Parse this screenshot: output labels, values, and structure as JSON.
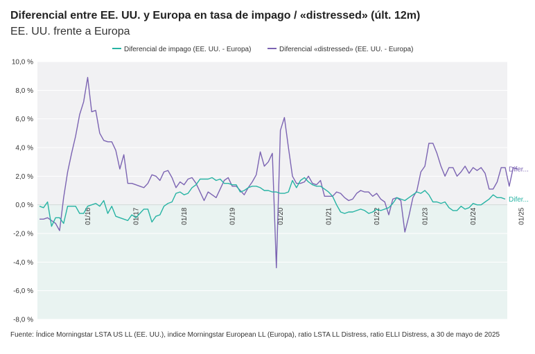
{
  "title": "Diferencial entre EE. UU. y Europa en tasa de impago / «distressed» (últ. 12m)",
  "subtitle": "EE. UU. frente a Europa",
  "source": "Fuente: Índice Morningstar LSTA US LL (EE. UU.), indice Morningstar European LL (Europa), ratio LSTA LL Distress, ratio ELLI Distress, a 30 de mayo de 2025",
  "colors": {
    "impago": "#26b3a3",
    "distressed": "#7b63b2",
    "negative_band": "#e9f3f1",
    "plot_bg": "#f1f1f3",
    "grid": "#ffffff"
  },
  "chart_data": {
    "type": "line",
    "yaxis": {
      "min": -8,
      "max": 10,
      "ticks": [
        "10,0 %",
        "8,0 %",
        "6,0 %",
        "4,0 %",
        "2,0 %",
        "0,0 %",
        "-2,0 %",
        "-4,0 %",
        "-6,0 %",
        "-8,0 %"
      ],
      "tick_values": [
        10,
        8,
        6,
        4,
        2,
        0,
        -2,
        -4,
        -6,
        -8
      ]
    },
    "xaxis": {
      "start": "2015-01",
      "end": "2025-05",
      "tick_labels": [
        "01/16",
        "01/17",
        "01/18",
        "01/19",
        "01/20",
        "01/21",
        "01/22",
        "01/23",
        "01/24",
        "01/25"
      ]
    },
    "legend_position": "top",
    "grid": true,
    "series": [
      {
        "name": "Diferencial de impago (EE. UU. - Europa)",
        "end_label": "Difer...",
        "values": [
          -0.1,
          -0.2,
          0.2,
          -1.5,
          -0.9,
          -0.9,
          -1.3,
          -0.1,
          -0.1,
          -0.1,
          -0.6,
          -0.6,
          -0.1,
          0.0,
          0.1,
          -0.1,
          0.3,
          -0.6,
          -0.1,
          -0.8,
          -0.9,
          -1.0,
          -1.1,
          -0.7,
          -0.9,
          -0.6,
          -0.3,
          -0.3,
          -1.2,
          -0.8,
          -0.7,
          -0.1,
          0.1,
          0.2,
          0.8,
          0.9,
          0.7,
          0.8,
          1.2,
          1.4,
          1.8,
          1.8,
          1.8,
          1.9,
          1.7,
          1.8,
          1.5,
          1.5,
          1.4,
          1.4,
          0.9,
          1.0,
          1.2,
          1.3,
          1.3,
          1.2,
          1.0,
          1.0,
          0.9,
          0.9,
          0.8,
          0.8,
          0.9,
          1.7,
          1.2,
          1.7,
          1.9,
          1.6,
          1.4,
          1.3,
          1.3,
          1.1,
          0.9,
          0.6,
          0.0,
          -0.5,
          -0.6,
          -0.5,
          -0.5,
          -0.4,
          -0.3,
          -0.4,
          -0.6,
          -0.5,
          -0.3,
          -0.4,
          -0.3,
          -0.2,
          0.1,
          0.5,
          0.4,
          0.3,
          0.5,
          0.7,
          0.9,
          0.8,
          1.0,
          0.7,
          0.2,
          0.2,
          0.1,
          0.2,
          -0.2,
          -0.4,
          -0.4,
          -0.1,
          -0.3,
          -0.2,
          0.1,
          0.0,
          0.0,
          0.2,
          0.4,
          0.7,
          0.5,
          0.5,
          0.4
        ]
      },
      {
        "name": "Diferencial «distressed» (EE. UU. - Europa)",
        "end_label": "Difer...",
        "values": [
          -1.0,
          -1.0,
          -0.9,
          -1.1,
          -1.3,
          -1.8,
          0.5,
          2.3,
          3.6,
          4.8,
          6.3,
          7.2,
          8.9,
          6.5,
          6.6,
          5.0,
          4.5,
          4.4,
          4.4,
          3.8,
          2.5,
          3.5,
          1.5,
          1.5,
          1.4,
          1.3,
          1.2,
          1.5,
          2.1,
          2.0,
          1.7,
          2.3,
          2.4,
          1.9,
          1.2,
          1.6,
          1.4,
          1.8,
          1.9,
          1.5,
          0.9,
          0.3,
          0.9,
          0.7,
          0.5,
          1.1,
          1.7,
          1.9,
          1.3,
          1.3,
          1.0,
          0.7,
          1.2,
          1.6,
          2.1,
          3.7,
          2.7,
          3.0,
          3.6,
          -4.4,
          5.2,
          6.1,
          4.0,
          2.0,
          1.5,
          1.5,
          1.6,
          2.0,
          1.5,
          1.4,
          1.7,
          0.6,
          0.6,
          0.6,
          0.9,
          0.8,
          0.5,
          0.3,
          0.4,
          0.8,
          1.0,
          0.9,
          0.9,
          0.6,
          0.8,
          0.4,
          0.2,
          -0.7,
          0.4,
          0.5,
          0.3,
          -1.9,
          -0.8,
          0.5,
          1.0,
          2.3,
          2.7,
          4.3,
          4.3,
          3.6,
          2.7,
          2.0,
          2.6,
          2.6,
          2.0,
          2.3,
          2.7,
          2.2,
          2.6,
          2.4,
          2.6,
          2.2,
          1.1,
          1.1,
          1.6,
          2.6,
          2.6,
          1.3,
          2.6,
          2.5
        ]
      }
    ]
  }
}
